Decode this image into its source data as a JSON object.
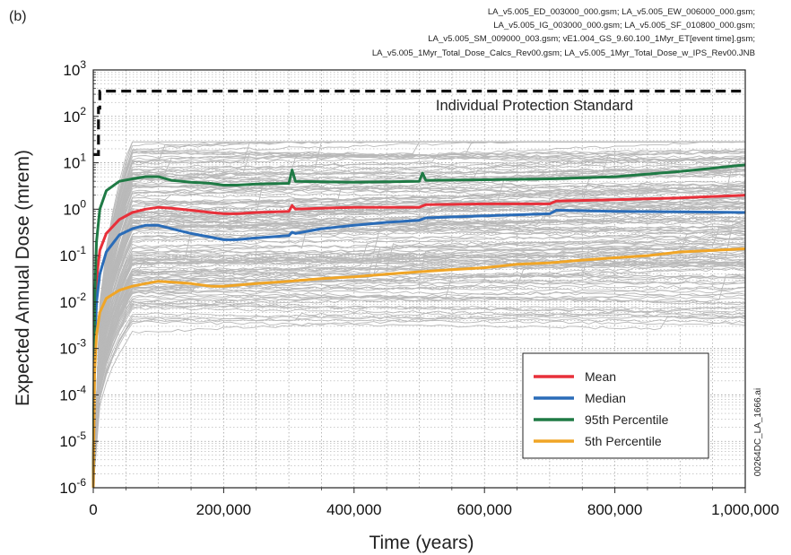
{
  "panel_label": "(b)",
  "file_lines": [
    "LA_v5.005_ED_003000_000.gsm; LA_v5.005_EW_006000_000.gsm;",
    "LA_v5.005_IG_003000_000.gsm; LA_v5.005_SF_010800_000.gsm;",
    "LA_v5.005_SM_009000_003.gsm; vE1.004_GS_9.60.100_1Myr_ET[event time].gsm;",
    "LA_v5.005_1Myr_Total_Dose_Calcs_Rev00.gsm; LA_v5.005_1Myr_Total_Dose_w_IPS_Rev00.JNB"
  ],
  "figure_id": "00264DC_LA_1666.ai",
  "colors": {
    "mean": "#e8303a",
    "median": "#2a6cb8",
    "p95": "#1f7a45",
    "p5": "#f0a526",
    "realizations": "#b9b9b9",
    "ips": "#111111"
  },
  "chart_data": {
    "type": "line",
    "xlabel": "Time (years)",
    "ylabel": "Expected Annual Dose (mrem)",
    "xlim": [
      0,
      1000000
    ],
    "ylim": [
      1e-06,
      1000
    ],
    "yscale": "log",
    "grid": true,
    "legend_position": "bottom-right",
    "x_ticks": [
      0,
      200000,
      400000,
      600000,
      800000,
      1000000
    ],
    "x_tick_labels": [
      "0",
      "200,000",
      "400,000",
      "600,000",
      "800,000",
      "1,000,000"
    ],
    "y_ticks": [
      1e-06,
      1e-05,
      0.0001,
      0.001,
      0.01,
      0.1,
      1.0,
      10.0,
      100.0,
      1000.0
    ],
    "y_tick_labels": [
      {
        "base": "10",
        "exp": "-6"
      },
      {
        "base": "10",
        "exp": "-5"
      },
      {
        "base": "10",
        "exp": "-4"
      },
      {
        "base": "10",
        "exp": "-3"
      },
      {
        "base": "10",
        "exp": "-2"
      },
      {
        "base": "10",
        "exp": "-1"
      },
      {
        "base": "10",
        "exp": "0"
      },
      {
        "base": "10",
        "exp": "1"
      },
      {
        "base": "10",
        "exp": "2"
      },
      {
        "base": "10",
        "exp": "3"
      }
    ],
    "annotation": "Individual Protection Standard",
    "standard": {
      "x": [
        0,
        8000,
        8000,
        10000,
        10000,
        1000000
      ],
      "y": [
        15,
        15,
        150,
        150,
        350,
        350
      ]
    },
    "series": [
      {
        "name": "Mean",
        "color_key": "mean",
        "x": [
          0,
          2000,
          5000,
          10000,
          20000,
          40000,
          60000,
          80000,
          100000,
          120000,
          150000,
          180000,
          200000,
          220000,
          250000,
          300000,
          305000,
          310000,
          350000,
          400000,
          450000,
          500000,
          510000,
          600000,
          700000,
          710000,
          800000,
          900000,
          1000000
        ],
        "y": [
          1e-06,
          0.002,
          0.03,
          0.13,
          0.3,
          0.6,
          0.85,
          1.0,
          1.1,
          1.05,
          0.95,
          0.85,
          0.8,
          0.8,
          0.85,
          0.9,
          1.2,
          1.0,
          1.05,
          1.1,
          1.1,
          1.1,
          1.25,
          1.3,
          1.3,
          1.5,
          1.6,
          1.75,
          2.0
        ]
      },
      {
        "name": "Median",
        "color_key": "median",
        "x": [
          0,
          2000,
          5000,
          10000,
          20000,
          40000,
          60000,
          80000,
          100000,
          120000,
          150000,
          180000,
          200000,
          220000,
          250000,
          300000,
          305000,
          310000,
          350000,
          400000,
          450000,
          500000,
          510000,
          600000,
          700000,
          710000,
          800000,
          900000,
          1000000
        ],
        "y": [
          1e-06,
          0.001,
          0.01,
          0.04,
          0.12,
          0.28,
          0.38,
          0.45,
          0.45,
          0.38,
          0.3,
          0.25,
          0.22,
          0.22,
          0.24,
          0.27,
          0.32,
          0.3,
          0.38,
          0.45,
          0.52,
          0.58,
          0.65,
          0.72,
          0.8,
          0.95,
          0.9,
          0.88,
          0.85
        ]
      },
      {
        "name": "95th Percentile",
        "color_key": "p95",
        "x": [
          0,
          2000,
          5000,
          10000,
          20000,
          40000,
          60000,
          80000,
          100000,
          120000,
          150000,
          180000,
          200000,
          220000,
          250000,
          300000,
          305000,
          310000,
          350000,
          400000,
          450000,
          500000,
          505000,
          510000,
          600000,
          700000,
          800000,
          900000,
          1000000
        ],
        "y": [
          1e-06,
          0.01,
          0.2,
          1.0,
          2.5,
          4.0,
          4.5,
          5.0,
          5.0,
          4.2,
          3.8,
          3.6,
          3.3,
          3.3,
          3.5,
          3.6,
          7.0,
          4.0,
          3.9,
          3.8,
          3.9,
          4.0,
          6.0,
          4.2,
          4.3,
          4.5,
          5.0,
          6.5,
          9.0
        ]
      },
      {
        "name": "5th Percentile",
        "color_key": "p5",
        "x": [
          0,
          2000,
          5000,
          10000,
          20000,
          40000,
          60000,
          80000,
          100000,
          120000,
          150000,
          180000,
          200000,
          250000,
          300000,
          350000,
          400000,
          450000,
          500000,
          550000,
          600000,
          650000,
          700000,
          750000,
          800000,
          850000,
          900000,
          950000,
          1000000
        ],
        "y": [
          1e-06,
          0.0003,
          0.002,
          0.006,
          0.012,
          0.018,
          0.022,
          0.025,
          0.028,
          0.027,
          0.025,
          0.022,
          0.022,
          0.025,
          0.028,
          0.032,
          0.035,
          0.04,
          0.045,
          0.05,
          0.055,
          0.065,
          0.07,
          0.08,
          0.09,
          0.1,
          0.12,
          0.13,
          0.14
        ]
      }
    ]
  }
}
